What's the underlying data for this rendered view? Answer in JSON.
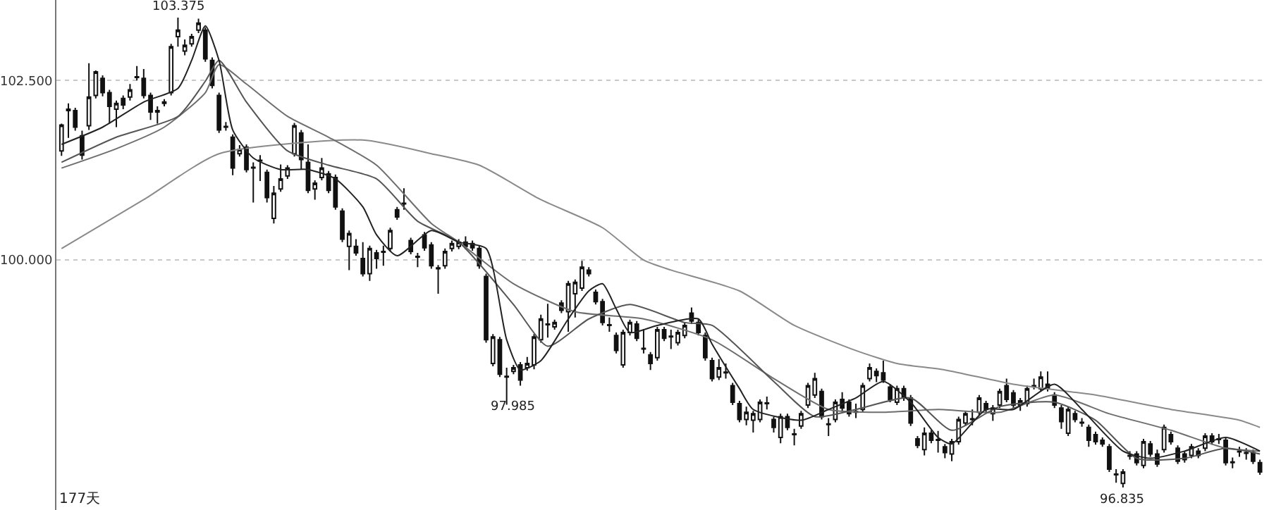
{
  "chart_data": {
    "type": "candlestick",
    "categories": [
      null,
      null,
      null,
      null,
      null,
      null,
      null,
      null,
      null,
      null,
      null,
      null,
      null,
      null,
      null,
      null,
      null,
      null,
      null,
      null,
      null,
      null,
      null,
      null,
      null,
      null,
      null,
      null,
      null,
      null,
      null,
      null,
      null,
      null,
      null,
      null,
      null,
      null,
      null,
      null,
      null,
      null,
      null,
      null,
      null,
      null,
      null,
      null,
      null,
      null,
      null,
      null,
      null,
      null,
      null,
      null,
      null,
      null,
      null,
      null,
      null,
      null,
      null,
      null,
      null,
      null,
      null,
      null,
      null,
      null,
      null,
      null,
      null,
      null,
      null,
      null,
      null,
      null,
      null,
      null,
      null,
      null,
      null,
      null,
      null,
      null,
      null,
      null,
      null,
      null,
      null,
      null,
      null,
      null,
      null,
      null,
      null,
      null,
      null,
      null,
      null,
      null,
      null,
      null,
      null,
      null,
      null,
      null,
      null,
      null,
      null,
      null,
      null,
      null,
      null,
      null,
      null,
      null,
      null,
      null,
      null,
      null,
      null,
      null,
      null,
      null,
      null,
      null,
      null,
      null,
      null,
      null,
      null,
      null,
      null,
      null,
      null,
      null,
      null,
      null,
      null,
      null,
      null,
      null,
      null,
      null,
      null,
      null,
      null,
      null,
      null,
      null,
      null,
      null,
      null,
      null,
      null,
      null,
      null,
      null,
      null,
      null,
      null,
      null,
      null,
      null,
      null,
      null,
      null,
      null,
      null,
      null,
      null,
      null,
      null,
      null
    ],
    "color": "#111111",
    "ohlc": [
      [
        101.52,
        101.9,
        101.45,
        101.88
      ],
      [
        102.08,
        102.18,
        101.7,
        102.1
      ],
      [
        102.08,
        102.12,
        101.8,
        101.85
      ],
      [
        101.73,
        101.8,
        101.4,
        101.46
      ],
      [
        101.87,
        102.74,
        101.81,
        102.27
      ],
      [
        102.29,
        102.64,
        102.25,
        102.62
      ],
      [
        102.53,
        102.57,
        102.28,
        102.33
      ],
      [
        102.33,
        102.37,
        101.9,
        102.14
      ],
      [
        102.1,
        102.22,
        101.85,
        102.18
      ],
      [
        102.25,
        102.29,
        102.1,
        102.16
      ],
      [
        102.27,
        102.45,
        102.22,
        102.37
      ],
      [
        102.54,
        102.7,
        102.5,
        102.55
      ],
      [
        102.53,
        102.66,
        102.25,
        102.29
      ],
      [
        102.29,
        102.33,
        101.95,
        102.06
      ],
      [
        102.06,
        102.14,
        101.9,
        102.08
      ],
      [
        102.18,
        102.24,
        102.14,
        102.2
      ],
      [
        102.33,
        103.01,
        102.29,
        102.97
      ],
      [
        103.11,
        103.375,
        102.97,
        103.2
      ],
      [
        102.91,
        103.07,
        102.85,
        102.99
      ],
      [
        103.01,
        103.15,
        102.97,
        103.11
      ],
      [
        103.2,
        103.36,
        103.16,
        103.3
      ],
      [
        103.2,
        103.24,
        102.76,
        102.8
      ],
      [
        102.78,
        102.82,
        102.39,
        102.43
      ],
      [
        102.29,
        102.33,
        101.77,
        101.81
      ],
      [
        101.85,
        101.92,
        101.8,
        101.86
      ],
      [
        101.71,
        101.75,
        101.18,
        101.28
      ],
      [
        101.48,
        101.6,
        101.44,
        101.54
      ],
      [
        101.57,
        101.61,
        101.22,
        101.26
      ],
      [
        101.29,
        101.36,
        100.8,
        101.28
      ],
      [
        101.39,
        101.46,
        101.1,
        101.38
      ],
      [
        101.22,
        101.26,
        100.8,
        100.87
      ],
      [
        100.58,
        101.03,
        100.51,
        100.93
      ],
      [
        100.99,
        101.33,
        100.95,
        101.13
      ],
      [
        101.17,
        101.32,
        101.13,
        101.28
      ],
      [
        101.48,
        101.91,
        101.44,
        101.87
      ],
      [
        101.77,
        101.81,
        101.26,
        101.4
      ],
      [
        101.36,
        101.61,
        100.93,
        100.97
      ],
      [
        100.99,
        101.11,
        100.84,
        101.07
      ],
      [
        101.15,
        101.42,
        101.11,
        101.28
      ],
      [
        101.2,
        101.24,
        100.93,
        100.97
      ],
      [
        101.15,
        101.19,
        100.7,
        100.74
      ],
      [
        100.68,
        100.72,
        100.25,
        100.29
      ],
      [
        100.19,
        100.41,
        99.86,
        100.37
      ],
      [
        100.19,
        100.29,
        100.06,
        100.1
      ],
      [
        100.02,
        100.25,
        99.77,
        99.81
      ],
      [
        99.81,
        100.2,
        99.71,
        100.16
      ],
      [
        100.1,
        100.14,
        99.88,
        100.02
      ],
      [
        100.12,
        100.2,
        99.92,
        100.11
      ],
      [
        100.16,
        100.45,
        100.12,
        100.41
      ],
      [
        100.7,
        100.74,
        100.56,
        100.6
      ],
      [
        100.79,
        101.0,
        100.7,
        100.78
      ],
      [
        100.27,
        100.31,
        100.08,
        100.12
      ],
      [
        100.05,
        100.1,
        99.9,
        100.04
      ],
      [
        100.35,
        100.39,
        100.13,
        100.17
      ],
      [
        100.21,
        100.25,
        99.88,
        99.92
      ],
      [
        99.89,
        99.93,
        99.53,
        99.88
      ],
      [
        99.92,
        100.16,
        99.88,
        100.12
      ],
      [
        100.16,
        100.27,
        100.12,
        100.23
      ],
      [
        100.19,
        100.29,
        100.15,
        100.25
      ],
      [
        100.25,
        100.33,
        100.15,
        100.19
      ],
      [
        100.23,
        100.27,
        100.13,
        100.17
      ],
      [
        100.16,
        100.2,
        99.88,
        99.92
      ],
      [
        99.77,
        99.81,
        98.85,
        98.89
      ],
      [
        98.56,
        98.97,
        98.52,
        98.93
      ],
      [
        98.89,
        98.93,
        98.37,
        98.41
      ],
      [
        98.38,
        98.5,
        97.985,
        98.37
      ],
      [
        98.45,
        98.54,
        98.41,
        98.5
      ],
      [
        98.54,
        98.58,
        98.25,
        98.33
      ],
      [
        98.5,
        98.65,
        98.46,
        98.56
      ],
      [
        98.54,
        98.97,
        98.48,
        98.93
      ],
      [
        98.89,
        99.24,
        98.85,
        99.18
      ],
      [
        99.1,
        99.39,
        98.92,
        99.11
      ],
      [
        99.07,
        99.17,
        99.03,
        99.13
      ],
      [
        99.4,
        99.44,
        99.26,
        99.3
      ],
      [
        99.28,
        99.71,
        99.0,
        99.67
      ],
      [
        99.53,
        99.73,
        99.2,
        99.69
      ],
      [
        99.61,
        99.99,
        99.57,
        99.9
      ],
      [
        99.86,
        99.9,
        99.77,
        99.81
      ],
      [
        99.55,
        99.59,
        99.38,
        99.42
      ],
      [
        99.42,
        99.46,
        99.09,
        99.13
      ],
      [
        99.1,
        99.2,
        99.0,
        99.09
      ],
      [
        98.95,
        98.99,
        98.7,
        98.74
      ],
      [
        98.54,
        99.03,
        98.5,
        98.99
      ],
      [
        98.99,
        99.17,
        98.95,
        99.13
      ],
      [
        99.11,
        99.15,
        98.87,
        98.91
      ],
      [
        98.77,
        99.04,
        98.7,
        98.76
      ],
      [
        98.68,
        98.72,
        98.47,
        98.56
      ],
      [
        98.64,
        99.07,
        98.6,
        99.03
      ],
      [
        99.03,
        99.07,
        98.87,
        98.91
      ],
      [
        98.94,
        99.03,
        98.76,
        98.93
      ],
      [
        98.85,
        99.03,
        98.81,
        98.99
      ],
      [
        98.95,
        99.13,
        98.91,
        99.09
      ],
      [
        99.26,
        99.34,
        99.11,
        99.15
      ],
      [
        99.13,
        99.17,
        98.95,
        98.99
      ],
      [
        98.95,
        98.99,
        98.6,
        98.64
      ],
      [
        98.6,
        98.64,
        98.31,
        98.35
      ],
      [
        98.37,
        98.62,
        98.33,
        98.5
      ],
      [
        98.44,
        98.56,
        98.35,
        98.43
      ],
      [
        98.25,
        98.29,
        97.98,
        98.02
      ],
      [
        98.0,
        98.04,
        97.74,
        97.78
      ],
      [
        97.78,
        97.96,
        97.7,
        97.88
      ],
      [
        97.77,
        97.9,
        97.6,
        97.86
      ],
      [
        97.78,
        98.06,
        97.74,
        98.02
      ],
      [
        98.01,
        98.1,
        97.92,
        98.0
      ],
      [
        97.78,
        97.82,
        97.6,
        97.67
      ],
      [
        97.53,
        97.86,
        97.45,
        97.82
      ],
      [
        97.82,
        97.86,
        97.63,
        97.67
      ],
      [
        97.58,
        97.65,
        97.42,
        97.57
      ],
      [
        97.69,
        97.9,
        97.65,
        97.86
      ],
      [
        97.98,
        98.29,
        97.94,
        98.25
      ],
      [
        98.12,
        98.43,
        98.08,
        98.35
      ],
      [
        98.17,
        98.21,
        97.78,
        97.82
      ],
      [
        97.72,
        97.8,
        97.55,
        97.71
      ],
      [
        97.78,
        98.06,
        97.74,
        98.02
      ],
      [
        98.06,
        98.16,
        97.9,
        97.94
      ],
      [
        98.02,
        98.06,
        97.82,
        97.86
      ],
      [
        97.89,
        98.0,
        97.8,
        97.88
      ],
      [
        97.92,
        98.29,
        97.88,
        98.25
      ],
      [
        98.35,
        98.56,
        98.31,
        98.5
      ],
      [
        98.45,
        98.49,
        98.3,
        98.39
      ],
      [
        98.43,
        98.6,
        98.29,
        98.33
      ],
      [
        98.23,
        98.27,
        98.02,
        98.06
      ],
      [
        98.02,
        98.25,
        97.98,
        98.21
      ],
      [
        98.21,
        98.25,
        98.04,
        98.08
      ],
      [
        98.08,
        98.12,
        97.69,
        97.73
      ],
      [
        97.51,
        97.55,
        97.38,
        97.42
      ],
      [
        97.36,
        97.67,
        97.28,
        97.59
      ],
      [
        97.59,
        97.63,
        97.45,
        97.49
      ],
      [
        97.5,
        97.62,
        97.32,
        97.49
      ],
      [
        97.4,
        97.44,
        97.24,
        97.32
      ],
      [
        97.3,
        97.51,
        97.2,
        97.47
      ],
      [
        97.47,
        97.82,
        97.43,
        97.78
      ],
      [
        97.73,
        97.9,
        97.69,
        97.86
      ],
      [
        97.79,
        97.92,
        97.7,
        97.78
      ],
      [
        97.88,
        98.12,
        97.84,
        98.08
      ],
      [
        98.0,
        98.04,
        97.88,
        97.92
      ],
      [
        97.86,
        97.98,
        97.76,
        97.94
      ],
      [
        97.98,
        98.21,
        97.94,
        98.17
      ],
      [
        98.25,
        98.35,
        98.02,
        98.06
      ],
      [
        98.15,
        98.19,
        97.94,
        97.98
      ],
      [
        97.98,
        98.08,
        97.9,
        98.04
      ],
      [
        98.0,
        98.25,
        97.96,
        98.21
      ],
      [
        98.24,
        98.35,
        98.2,
        98.25
      ],
      [
        98.21,
        98.45,
        98.17,
        98.37
      ],
      [
        98.27,
        98.45,
        98.17,
        98.21
      ],
      [
        98.12,
        98.16,
        97.94,
        97.98
      ],
      [
        97.94,
        97.98,
        97.65,
        97.75
      ],
      [
        97.59,
        97.96,
        97.55,
        97.92
      ],
      [
        97.86,
        97.9,
        97.74,
        97.78
      ],
      [
        97.74,
        97.8,
        97.68,
        97.73
      ],
      [
        97.67,
        97.71,
        97.4,
        97.49
      ],
      [
        97.57,
        97.61,
        97.43,
        97.47
      ],
      [
        97.49,
        97.53,
        97.4,
        97.44
      ],
      [
        97.4,
        97.44,
        97.05,
        97.09
      ],
      [
        97.02,
        97.09,
        96.9,
        97.01
      ],
      [
        96.89,
        97.09,
        96.835,
        97.05
      ],
      [
        97.27,
        97.34,
        97.22,
        97.28
      ],
      [
        97.3,
        97.34,
        97.14,
        97.18
      ],
      [
        97.14,
        97.51,
        97.1,
        97.47
      ],
      [
        97.44,
        97.48,
        97.26,
        97.3
      ],
      [
        97.3,
        97.36,
        97.12,
        97.16
      ],
      [
        97.36,
        97.71,
        97.32,
        97.67
      ],
      [
        97.57,
        97.61,
        97.43,
        97.47
      ],
      [
        97.38,
        97.42,
        97.16,
        97.2
      ],
      [
        97.3,
        97.34,
        97.18,
        97.22
      ],
      [
        97.28,
        97.44,
        97.24,
        97.4
      ],
      [
        97.34,
        97.38,
        97.24,
        97.28
      ],
      [
        97.38,
        97.59,
        97.34,
        97.55
      ],
      [
        97.55,
        97.59,
        97.43,
        97.47
      ],
      [
        97.5,
        97.58,
        97.44,
        97.51
      ],
      [
        97.49,
        97.53,
        97.14,
        97.18
      ],
      [
        97.19,
        97.25,
        97.1,
        97.18
      ],
      [
        97.33,
        97.4,
        97.26,
        97.34
      ],
      [
        97.31,
        97.38,
        97.22,
        97.32
      ],
      [
        97.32,
        97.36,
        97.16,
        97.2
      ],
      [
        97.18,
        97.22,
        97.01,
        97.05
      ]
    ],
    "series": [
      {
        "type": "line",
        "color": "#8a8a8a",
        "values": [
          100.16,
          null,
          null,
          null,
          null,
          null,
          null,
          null,
          null,
          null,
          null,
          null,
          100.84,
          null,
          null,
          null,
          null,
          null,
          null,
          null,
          null,
          null,
          null,
          101.48,
          null,
          null,
          null,
          null,
          null,
          null,
          null,
          null,
          null,
          null,
          null,
          null,
          null,
          null,
          null,
          null,
          null,
          null,
          null,
          null,
          101.67,
          null,
          null,
          null,
          null,
          null,
          null,
          null,
          null,
          null,
          101.48,
          null,
          null,
          null,
          null,
          null,
          null,
          101.32,
          null,
          null,
          null,
          null,
          null,
          null,
          null,
          null,
          100.84,
          null,
          null,
          null,
          null,
          null,
          null,
          null,
          null,
          100.45,
          null,
          null,
          null,
          null,
          null,
          100.0,
          null,
          null,
          null,
          99.86,
          null,
          null,
          null,
          null,
          null,
          null,
          null,
          null,
          null,
          99.57,
          null,
          null,
          null,
          null,
          null,
          null,
          null,
          99.09,
          null,
          null,
          null,
          null,
          null,
          null,
          null,
          null,
          98.74,
          null,
          null,
          null,
          null,
          null,
          98.56,
          null,
          null,
          null,
          null,
          null,
          null,
          98.47,
          null,
          null,
          null,
          null,
          null,
          null,
          null,
          null,
          null,
          98.27,
          null,
          null,
          null,
          null,
          null,
          null,
          null,
          98.17,
          null,
          null,
          null,
          98.12,
          null,
          null,
          null,
          null,
          null,
          null,
          null,
          null,
          null,
          null,
          97.92,
          null,
          null,
          null,
          null,
          null,
          null,
          null,
          null,
          null,
          97.77,
          null,
          null,
          97.67
        ]
      },
      {
        "type": "line",
        "color": "#6e6e6e",
        "values": [
          101.28,
          null,
          null,
          null,
          null,
          null,
          null,
          null,
          101.55,
          null,
          null,
          null,
          null,
          null,
          null,
          101.85,
          null,
          null,
          null,
          null,
          null,
          102.33,
          null,
          102.72,
          null,
          null,
          null,
          102.45,
          null,
          null,
          null,
          null,
          null,
          102.0,
          null,
          null,
          null,
          null,
          null,
          101.71,
          null,
          null,
          null,
          null,
          null,
          null,
          101.32,
          null,
          null,
          null,
          null,
          null,
          null,
          null,
          100.51,
          null,
          null,
          null,
          100.25,
          null,
          null,
          null,
          null,
          null,
          null,
          null,
          99.67,
          null,
          null,
          null,
          null,
          null,
          null,
          null,
          null,
          99.28,
          null,
          null,
          null,
          null,
          null,
          null,
          null,
          null,
          null,
          99.18,
          null,
          null,
          null,
          null,
          null,
          null,
          null,
          null,
          null,
          98.89,
          null,
          null,
          null,
          null,
          null,
          null,
          null,
          null,
          98.35,
          null,
          null,
          null,
          null,
          null,
          null,
          null,
          97.92,
          null,
          null,
          null,
          null,
          null,
          null,
          null,
          97.88,
          null,
          null,
          null,
          null,
          null,
          null,
          null,
          97.92,
          null,
          null,
          null,
          null,
          null,
          null,
          null,
          null,
          97.88,
          null,
          null,
          null,
          null,
          null,
          null,
          null,
          98.12,
          null,
          null,
          null,
          null,
          null,
          null,
          null,
          97.86,
          null,
          null,
          null,
          null,
          null,
          null,
          null,
          null,
          97.63,
          null,
          null,
          null,
          null,
          null,
          null,
          null,
          97.38,
          null,
          null,
          null,
          null,
          97.34
        ]
      },
      {
        "type": "line",
        "color": "#555555",
        "values": [
          101.36,
          null,
          null,
          null,
          null,
          null,
          null,
          null,
          101.71,
          null,
          null,
          null,
          null,
          null,
          null,
          null,
          null,
          102.0,
          null,
          null,
          null,
          102.49,
          null,
          102.78,
          null,
          null,
          null,
          102.2,
          null,
          null,
          null,
          null,
          null,
          101.52,
          null,
          null,
          null,
          null,
          null,
          101.32,
          null,
          null,
          null,
          null,
          null,
          null,
          101.13,
          null,
          null,
          null,
          null,
          null,
          100.54,
          null,
          null,
          null,
          null,
          null,
          100.25,
          null,
          null,
          null,
          null,
          null,
          null,
          null,
          99.38,
          null,
          null,
          null,
          null,
          98.8,
          null,
          null,
          null,
          null,
          null,
          99.18,
          null,
          null,
          null,
          null,
          null,
          99.38,
          null,
          null,
          null,
          null,
          null,
          null,
          null,
          99.13,
          null,
          null,
          null,
          99.09,
          null,
          null,
          null,
          null,
          null,
          null,
          null,
          null,
          98.31,
          null,
          null,
          null,
          null,
          null,
          97.82,
          null,
          null,
          null,
          null,
          null,
          97.92,
          null,
          null,
          null,
          null,
          null,
          null,
          null,
          98.08,
          null,
          null,
          null,
          null,
          null,
          97.63,
          null,
          null,
          null,
          null,
          null,
          null,
          97.96,
          null,
          null,
          null,
          null,
          null,
          null,
          null,
          98.02,
          null,
          null,
          null,
          null,
          null,
          97.77,
          null,
          null,
          null,
          null,
          null,
          97.24,
          null,
          null,
          null,
          null,
          null,
          null,
          97.24,
          null,
          null,
          null,
          null,
          null,
          97.38,
          null,
          null,
          null,
          null,
          97.3
        ]
      },
      {
        "type": "line",
        "color": "#222222",
        "values": [
          101.61,
          null,
          null,
          null,
          null,
          null,
          101.85,
          null,
          null,
          null,
          null,
          null,
          102.2,
          null,
          null,
          null,
          null,
          102.39,
          null,
          102.78,
          null,
          103.26,
          null,
          102.78,
          null,
          101.81,
          null,
          null,
          101.42,
          null,
          null,
          null,
          101.26,
          null,
          null,
          null,
          101.26,
          null,
          null,
          null,
          101.13,
          null,
          null,
          null,
          100.74,
          null,
          100.35,
          null,
          null,
          100.06,
          null,
          null,
          null,
          null,
          100.41,
          null,
          null,
          null,
          100.25,
          null,
          null,
          null,
          100.16,
          null,
          null,
          98.89,
          null,
          98.47,
          null,
          null,
          98.6,
          null,
          null,
          null,
          99.18,
          null,
          null,
          99.57,
          null,
          99.67,
          null,
          99.32,
          null,
          98.99,
          null,
          null,
          null,
          99.09,
          null,
          null,
          null,
          null,
          null,
          99.18,
          null,
          98.83,
          null,
          null,
          null,
          98.21,
          null,
          97.92,
          null,
          null,
          null,
          null,
          null,
          null,
          97.77,
          null,
          null,
          null,
          97.92,
          null,
          null,
          null,
          98.08,
          null,
          null,
          null,
          98.31,
          null,
          null,
          null,
          98.02,
          null,
          null,
          null,
          97.53,
          null,
          97.44,
          null,
          null,
          null,
          null,
          97.92,
          null,
          null,
          null,
          97.92,
          null,
          null,
          null,
          null,
          null,
          98.27,
          null,
          null,
          null,
          97.92,
          null,
          null,
          null,
          null,
          null,
          97.34,
          null,
          null,
          null,
          97.24,
          null,
          null,
          null,
          null,
          97.34,
          null,
          null,
          null,
          null,
          null,
          97.53,
          null,
          null,
          null,
          null,
          97.34
        ]
      }
    ],
    "ylim": [
      96.52,
      103.62
    ],
    "yticks": [
      {
        "value": 102.5,
        "label": "102.500"
      },
      {
        "value": 100,
        "label": "100.000"
      }
    ],
    "grid": "y",
    "tick_labels": "y",
    "annotations": [
      {
        "text": "103.375",
        "y": 103.375
      },
      "97.985",
      {
        "text": "96.835",
        "y": 96.835
      },
      "177天"
    ]
  }
}
